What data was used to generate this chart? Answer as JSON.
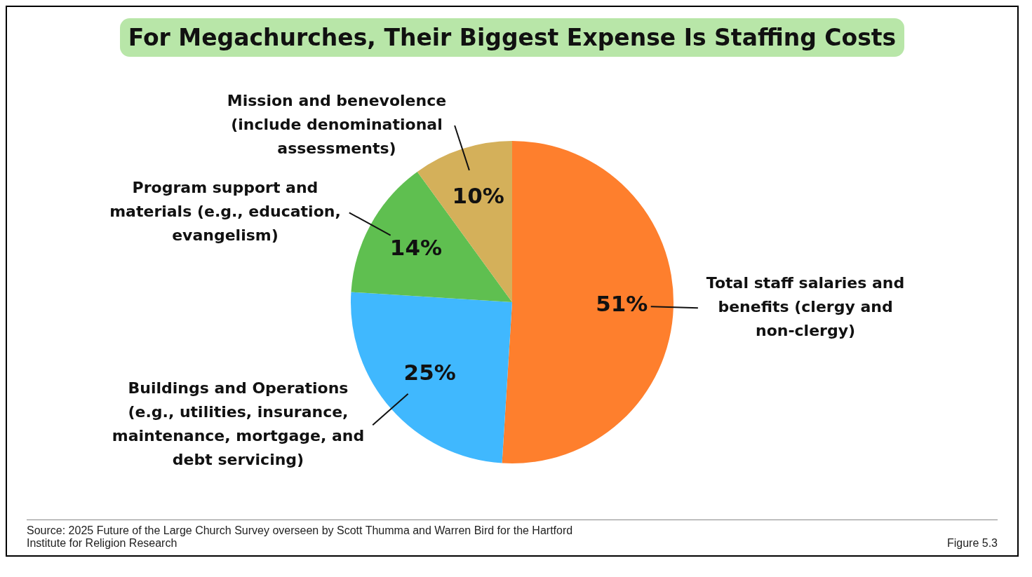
{
  "chart_data": {
    "type": "pie",
    "title": "For Megachurches, Their Biggest Expense Is Staffing Costs",
    "categories": [
      "Total staff salaries and benefits (clergy and non-clergy)",
      "Buildings and Operations (e.g., utilities, insurance, maintenance, mortgage, and debt servicing)",
      "Program support and materials (e.g., education, evangelism)",
      "Mission and benevolence (include denominational assessments)"
    ],
    "values": [
      51,
      25,
      14,
      10
    ],
    "value_labels": [
      "51%",
      "25%",
      "14%",
      "10%"
    ],
    "colors": [
      "#fe7f2d",
      "#40b8fe",
      "#5fbf50",
      "#d4b05a"
    ],
    "legend": false,
    "annotations": [
      "Source: 2025 Future of the Large Church Survey overseen by Scott Thumma and Warren Bird for the Hartford Institute for Religion Research",
      "Figure 5.3"
    ]
  }
}
